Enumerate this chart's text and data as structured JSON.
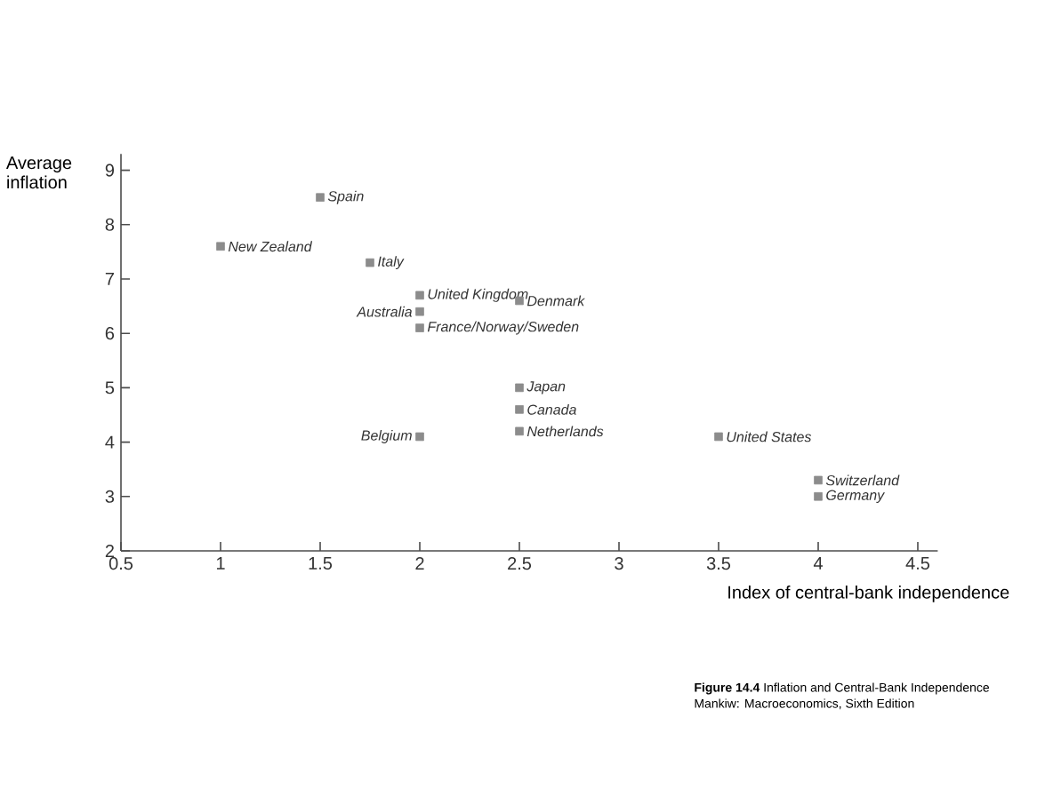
{
  "chart_data": {
    "type": "scatter",
    "xlabel": "Index of central-bank independence",
    "ylabel": "Average inflation",
    "x": [
      1,
      1.5,
      1.75,
      2,
      2,
      2,
      2,
      2.5,
      2.5,
      2.5,
      2.5,
      3.5,
      4,
      4
    ],
    "series": [
      {
        "color": "#8c8c8c",
        "values": [
          7.6,
          8.5,
          7.3,
          6.7,
          6.4,
          6.1,
          4.1,
          6.6,
          5.0,
          4.6,
          4.2,
          4.1,
          3.3,
          3.0
        ]
      }
    ],
    "marker": "square",
    "xlim": [
      0.5,
      4.6
    ],
    "ylim": [
      2,
      9.3
    ],
    "xticks": [
      0.5,
      1,
      1.5,
      2,
      2.5,
      3,
      3.5,
      4,
      4.5
    ],
    "yticks": [
      2,
      3,
      4,
      5,
      6,
      7,
      8,
      9
    ],
    "grid": false,
    "annotations": [
      {
        "text": "New Zealand",
        "x": 1,
        "y": 7.6
      },
      {
        "text": "Spain",
        "x": 1.5,
        "y": 8.5
      },
      {
        "text": "Italy",
        "x": 1.75,
        "y": 7.3
      },
      {
        "text": "United Kingdom",
        "x": 2,
        "y": 6.7
      },
      {
        "text": "Australia",
        "x": 2,
        "y": 6.4
      },
      {
        "text": "France/Norway/Sweden",
        "x": 2,
        "y": 6.1
      },
      {
        "text": "Belgium",
        "x": 2,
        "y": 4.1
      },
      {
        "text": "Denmark",
        "x": 2.5,
        "y": 6.6
      },
      {
        "text": "Japan",
        "x": 2.5,
        "y": 5.0
      },
      {
        "text": "Canada",
        "x": 2.5,
        "y": 4.6
      },
      {
        "text": "Netherlands",
        "x": 2.5,
        "y": 4.2
      },
      {
        "text": "United States",
        "x": 3.5,
        "y": 4.1
      },
      {
        "text": "Switzerland",
        "x": 4,
        "y": 3.3
      },
      {
        "text": "Germany",
        "x": 4,
        "y": 3.0
      },
      "**Figure 14.4** Inflation and Central-Bank Independence",
      "Mankiw: Macroeconomics, Sixth Edition"
    ]
  }
}
